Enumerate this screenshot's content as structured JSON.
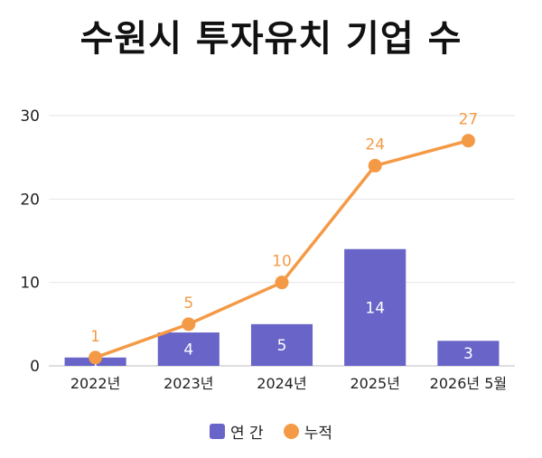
{
  "chart_data": {
    "type": "bar",
    "title": "수원시 투자유치 기업 수",
    "categories": [
      "2022년",
      "2023년",
      "2024년",
      "2025년",
      "2026년 5월"
    ],
    "ylim": [
      0,
      30
    ],
    "yticks": [
      0,
      10,
      20,
      30
    ],
    "grid": true,
    "legend_position": "bottom",
    "series": [
      {
        "name": "연 간",
        "type": "bar",
        "values": [
          1,
          4,
          5,
          14,
          3
        ],
        "color": "#6864c8"
      },
      {
        "name": "누적",
        "type": "line",
        "values": [
          1,
          5,
          10,
          24,
          27
        ],
        "color": "#f49a46"
      }
    ]
  }
}
